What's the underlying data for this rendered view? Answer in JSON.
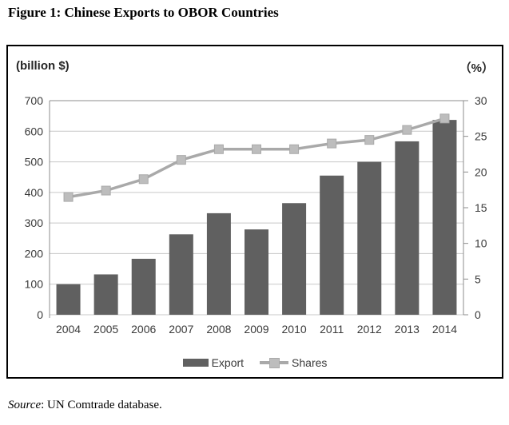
{
  "page": {
    "title": "Figure 1: Chinese Exports to OBOR Countries",
    "source": {
      "label": "Source",
      "text": ": UN Comtrade database."
    }
  },
  "chart_data": {
    "type": "combo-bar-line",
    "categories": [
      "2004",
      "2005",
      "2006",
      "2007",
      "2008",
      "2009",
      "2010",
      "2011",
      "2012",
      "2013",
      "2014"
    ],
    "series": [
      {
        "name": "Export",
        "chart_type": "bar",
        "axis": "left",
        "values": [
          100,
          132,
          183,
          263,
          332,
          279,
          365,
          455,
          500,
          567,
          637
        ],
        "color": "#606060"
      },
      {
        "name": "Shares",
        "chart_type": "line",
        "axis": "right",
        "values": [
          16.5,
          17.4,
          19.0,
          21.7,
          23.2,
          23.2,
          23.2,
          24.0,
          24.5,
          25.9,
          27.5
        ],
        "color": "#a9a9a9",
        "marker_color": "#bdbdbd"
      }
    ],
    "left_axis": {
      "label": "(billion $)",
      "min": 0,
      "max": 700,
      "step": 100
    },
    "right_axis": {
      "label": "（%）",
      "min": 0,
      "max": 30,
      "step": 5
    },
    "grid": true,
    "legend_position": "bottom",
    "colors": {
      "grid": "#c8c8c8",
      "axis": "#8c8c8c",
      "text": "#3a3a3a"
    }
  }
}
